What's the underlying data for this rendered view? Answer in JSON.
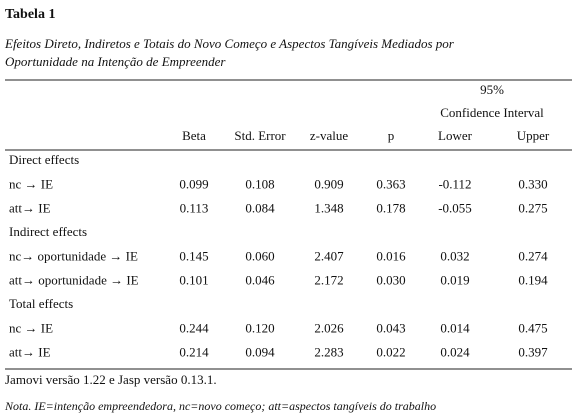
{
  "header": {
    "title": "Tabela 1",
    "subtitle": [
      "Efeitos Direto, Indiretos e Totais do Novo Começo e Aspectos Tangíveis Mediados por",
      "Oportunidade na Intenção de Empreender"
    ]
  },
  "table": {
    "ci_top": "95%",
    "ci_label": "Confidence Interval",
    "columns": [
      "Beta",
      "Std. Error",
      "z-value",
      "p",
      "Lower",
      "Upper"
    ],
    "sections": [
      {
        "label": "Direct effects",
        "rows": [
          {
            "label": "nc → IE",
            "values": [
              "0.099",
              "0.108",
              "0.909",
              "0.363",
              "-0.112",
              "0.330"
            ]
          },
          {
            "label": "att→ IE",
            "values": [
              "0.113",
              "0.084",
              "1.348",
              "0.178",
              "-0.055",
              "0.275"
            ]
          }
        ]
      },
      {
        "label": "Indirect effects",
        "rows": [
          {
            "label": "nc→ oportunidade → IE",
            "values": [
              "0.145",
              "0.060",
              "2.407",
              "0.016",
              "0.032",
              "0.274"
            ]
          },
          {
            "label": "att→ oportunidade → IE",
            "values": [
              "0.101",
              "0.046",
              "2.172",
              "0.030",
              "0.019",
              "0.194"
            ]
          }
        ]
      },
      {
        "label": "Total effects",
        "rows": [
          {
            "label": "nc → IE",
            "values": [
              "0.244",
              "0.120",
              "2.026",
              "0.043",
              "0.014",
              "0.475"
            ]
          },
          {
            "label": "att→ IE",
            "values": [
              "0.214",
              "0.094",
              "2.283",
              "0.022",
              "0.024",
              "0.397"
            ]
          }
        ]
      }
    ]
  },
  "footer": {
    "source": "Jamovi versão 1.22 e Jasp versão 0.13.1.",
    "note": "Nota. IE=intenção empreendedora, nc=novo começo; att=aspectos tangíveis do trabalho"
  }
}
